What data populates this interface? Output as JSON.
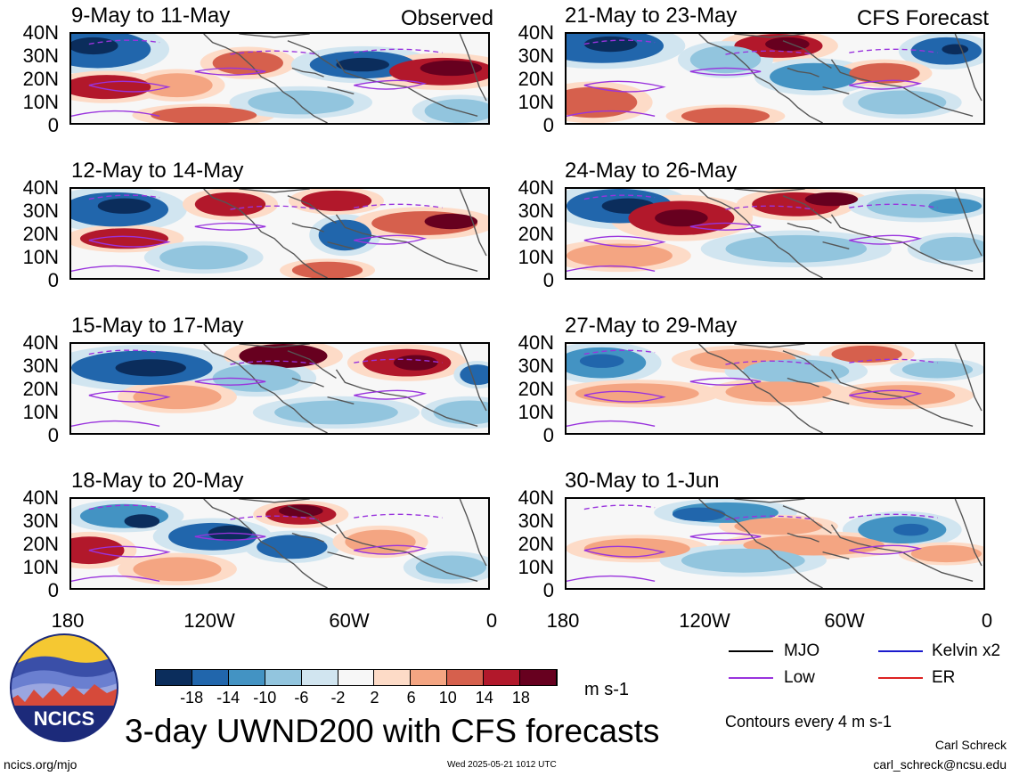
{
  "panels": [
    {
      "id": "p1",
      "title": "9-May to 11-May",
      "tag": "Observed"
    },
    {
      "id": "p2",
      "title": "12-May to 14-May",
      "tag": ""
    },
    {
      "id": "p3",
      "title": "15-May to 17-May",
      "tag": ""
    },
    {
      "id": "p4",
      "title": "18-May to 20-May",
      "tag": ""
    },
    {
      "id": "p5",
      "title": "21-May to 23-May",
      "tag": "CFS Forecast"
    },
    {
      "id": "p6",
      "title": "24-May to 26-May",
      "tag": ""
    },
    {
      "id": "p7",
      "title": "27-May to 29-May",
      "tag": ""
    },
    {
      "id": "p8",
      "title": "30-May to 1-Jun",
      "tag": ""
    }
  ],
  "lat_labels": [
    "40N",
    "30N",
    "20N",
    "10N",
    "0"
  ],
  "lon_labels": [
    "180",
    "120W",
    "60W",
    "0"
  ],
  "colorbar": {
    "colors": [
      "#0b2d5c",
      "#2166ac",
      "#4393c3",
      "#92c5de",
      "#d1e5f0",
      "#f7f7f7",
      "#fddbc7",
      "#f4a582",
      "#d6604d",
      "#b2182b",
      "#67001f"
    ],
    "labels": [
      "-18",
      "-14",
      "-10",
      "-6",
      "-2",
      "2",
      "6",
      "10",
      "14",
      "18"
    ],
    "unit": "m s-1"
  },
  "legend": {
    "items": [
      {
        "label": "MJO",
        "color": "#000000"
      },
      {
        "label": "Kelvin x2",
        "color": "#1a1acc"
      },
      {
        "label": "Low",
        "color": "#9933dd"
      },
      {
        "label": "ER",
        "color": "#dd2222"
      }
    ],
    "contours_note": "Contours every 4 m s-1"
  },
  "title": "3-day UWND200 with CFS forecasts",
  "logo_text": "NCICS",
  "footer": {
    "url": "ncics.org/mjo",
    "timestamp": "Wed 2025-05-21 1012 UTC",
    "author": "Carl Schreck",
    "email": "carl_schreck@ncsu.edu"
  }
}
